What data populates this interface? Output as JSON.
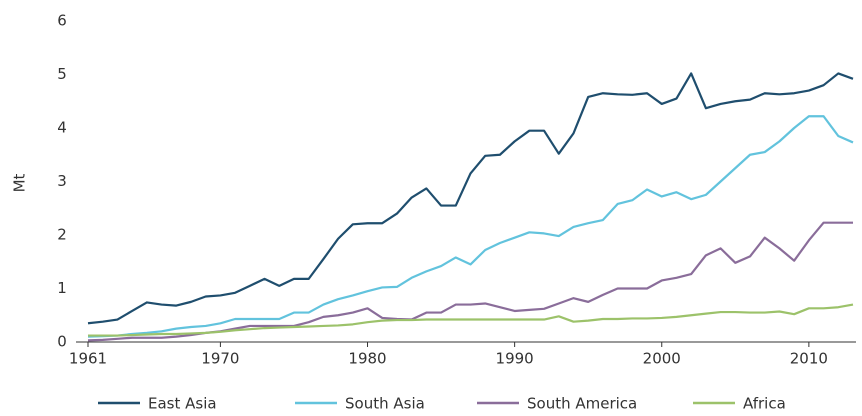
{
  "chart_data": {
    "type": "line",
    "y_label": "Mt",
    "x": [
      1961,
      1962,
      1963,
      1964,
      1965,
      1966,
      1967,
      1968,
      1969,
      1970,
      1971,
      1972,
      1973,
      1974,
      1975,
      1976,
      1977,
      1978,
      1979,
      1980,
      1981,
      1982,
      1983,
      1984,
      1985,
      1986,
      1987,
      1988,
      1989,
      1990,
      1991,
      1992,
      1993,
      1994,
      1995,
      1996,
      1997,
      1998,
      1999,
      2000,
      2001,
      2002,
      2003,
      2004,
      2005,
      2006,
      2007,
      2008,
      2009,
      2010,
      2011,
      2012,
      2013
    ],
    "xlim": [
      1961,
      2013
    ],
    "xticks": [
      1961,
      1970,
      1980,
      1990,
      2000,
      2010
    ],
    "ylim": [
      0,
      6
    ],
    "yticks": [
      0,
      1,
      2,
      3,
      4,
      5,
      6
    ],
    "grid": false,
    "legend": "bottom",
    "series": [
      {
        "name": "East Asia",
        "color": "#1f4e6e",
        "values": [
          0.35,
          0.38,
          0.42,
          0.58,
          0.74,
          0.7,
          0.68,
          0.75,
          0.85,
          0.87,
          0.92,
          1.05,
          1.18,
          1.05,
          1.18,
          1.18,
          1.55,
          1.93,
          2.2,
          2.22,
          2.22,
          2.4,
          2.7,
          2.87,
          2.55,
          2.55,
          3.15,
          3.48,
          3.5,
          3.75,
          3.95,
          3.95,
          3.52,
          3.9,
          4.58,
          4.65,
          4.63,
          4.62,
          4.65,
          4.45,
          4.55,
          5.02,
          4.37,
          4.45,
          4.5,
          4.53,
          4.65,
          4.63,
          4.65,
          4.7,
          4.8,
          5.02,
          4.92
        ]
      },
      {
        "name": "South Asia",
        "color": "#62c3dd",
        "values": [
          0.1,
          0.11,
          0.12,
          0.15,
          0.17,
          0.2,
          0.25,
          0.28,
          0.3,
          0.35,
          0.43,
          0.43,
          0.43,
          0.43,
          0.55,
          0.55,
          0.7,
          0.8,
          0.87,
          0.95,
          1.02,
          1.03,
          1.2,
          1.32,
          1.42,
          1.58,
          1.45,
          1.72,
          1.85,
          1.95,
          2.05,
          2.03,
          1.98,
          2.15,
          2.22,
          2.28,
          2.58,
          2.65,
          2.85,
          2.72,
          2.8,
          2.67,
          2.75,
          3.0,
          3.25,
          3.5,
          3.55,
          3.75,
          4.0,
          4.22,
          4.22,
          3.85,
          3.73
        ]
      },
      {
        "name": "South America",
        "color": "#8a6d9a",
        "values": [
          0.03,
          0.04,
          0.06,
          0.08,
          0.08,
          0.08,
          0.1,
          0.13,
          0.17,
          0.2,
          0.25,
          0.3,
          0.3,
          0.3,
          0.3,
          0.37,
          0.47,
          0.5,
          0.55,
          0.63,
          0.45,
          0.43,
          0.42,
          0.55,
          0.55,
          0.7,
          0.7,
          0.72,
          0.65,
          0.58,
          0.6,
          0.62,
          0.72,
          0.82,
          0.75,
          0.88,
          1.0,
          1.0,
          1.0,
          1.15,
          1.2,
          1.27,
          1.62,
          1.75,
          1.48,
          1.6,
          1.95,
          1.75,
          1.52,
          1.9,
          2.23,
          2.23,
          2.23
        ]
      },
      {
        "name": "Africa",
        "color": "#9cc26a",
        "values": [
          0.12,
          0.12,
          0.12,
          0.13,
          0.14,
          0.15,
          0.15,
          0.16,
          0.17,
          0.19,
          0.22,
          0.24,
          0.26,
          0.27,
          0.28,
          0.29,
          0.3,
          0.31,
          0.33,
          0.37,
          0.4,
          0.41,
          0.41,
          0.42,
          0.42,
          0.42,
          0.42,
          0.42,
          0.42,
          0.42,
          0.42,
          0.42,
          0.48,
          0.38,
          0.4,
          0.43,
          0.43,
          0.44,
          0.44,
          0.45,
          0.47,
          0.5,
          0.53,
          0.56,
          0.56,
          0.55,
          0.55,
          0.57,
          0.52,
          0.63,
          0.63,
          0.65,
          0.7
        ]
      }
    ]
  }
}
